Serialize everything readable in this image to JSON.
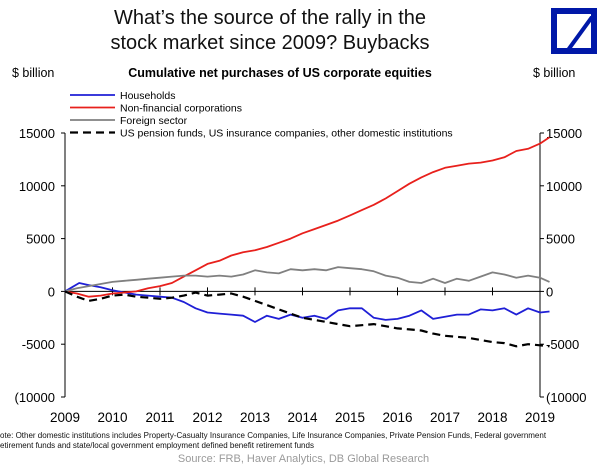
{
  "header": {
    "title_line1": "What’s the source of the rally in the",
    "title_line2": "stock market since 2009? Buybacks"
  },
  "logo": {
    "icon": "deutsche-bank-logo",
    "color": "#0018a8"
  },
  "chart_data": {
    "type": "line",
    "title": "Cumulative net purchases of US corporate equities",
    "ylabel_left": "$ billion",
    "ylabel_right": "$ billion",
    "ylim": [
      -10000,
      15000
    ],
    "y_ticks": [
      15000,
      10000,
      5000,
      0,
      -5000,
      -10000
    ],
    "y_tick_labels": [
      "15000",
      "10000",
      "5000",
      "0",
      "-5000",
      "(10000"
    ],
    "xlim": [
      2009,
      2019
    ],
    "x_ticks": [
      "2009",
      "2010",
      "2011",
      "2012",
      "2013",
      "2014",
      "2015",
      "2016",
      "2017",
      "2018",
      "2019"
    ],
    "grid": false,
    "legend_position": "top-left",
    "series": [
      {
        "name": "Households",
        "color": "#1f1fd6",
        "style": "solid",
        "points": [
          [
            2009.0,
            0
          ],
          [
            2009.15,
            400
          ],
          [
            2009.3,
            800
          ],
          [
            2009.5,
            600
          ],
          [
            2009.75,
            400
          ],
          [
            2010.0,
            100
          ],
          [
            2010.25,
            -100
          ],
          [
            2010.5,
            -300
          ],
          [
            2010.75,
            -400
          ],
          [
            2011.0,
            -500
          ],
          [
            2011.25,
            -600
          ],
          [
            2011.5,
            -1000
          ],
          [
            2011.75,
            -1600
          ],
          [
            2012.0,
            -2000
          ],
          [
            2012.25,
            -2100
          ],
          [
            2012.5,
            -2200
          ],
          [
            2012.75,
            -2300
          ],
          [
            2013.0,
            -2900
          ],
          [
            2013.25,
            -2300
          ],
          [
            2013.5,
            -2600
          ],
          [
            2013.75,
            -2200
          ],
          [
            2014.0,
            -2500
          ],
          [
            2014.25,
            -2300
          ],
          [
            2014.5,
            -2600
          ],
          [
            2014.75,
            -1800
          ],
          [
            2015.0,
            -1600
          ],
          [
            2015.25,
            -1600
          ],
          [
            2015.5,
            -2500
          ],
          [
            2015.75,
            -2700
          ],
          [
            2016.0,
            -2600
          ],
          [
            2016.25,
            -2300
          ],
          [
            2016.5,
            -1800
          ],
          [
            2016.75,
            -2600
          ],
          [
            2017.0,
            -2400
          ],
          [
            2017.25,
            -2200
          ],
          [
            2017.5,
            -2200
          ],
          [
            2017.75,
            -1700
          ],
          [
            2018.0,
            -1800
          ],
          [
            2018.25,
            -1600
          ],
          [
            2018.5,
            -2200
          ],
          [
            2018.75,
            -1600
          ],
          [
            2019.0,
            -2000
          ],
          [
            2019.2,
            -1900
          ]
        ]
      },
      {
        "name": "Non-financial corporations",
        "color": "#e8201c",
        "style": "solid",
        "points": [
          [
            2009.0,
            0
          ],
          [
            2009.25,
            -200
          ],
          [
            2009.5,
            -500
          ],
          [
            2009.75,
            -400
          ],
          [
            2010.0,
            -200
          ],
          [
            2010.25,
            -100
          ],
          [
            2010.5,
            0
          ],
          [
            2010.75,
            300
          ],
          [
            2011.0,
            500
          ],
          [
            2011.25,
            800
          ],
          [
            2011.5,
            1400
          ],
          [
            2011.75,
            2000
          ],
          [
            2012.0,
            2600
          ],
          [
            2012.25,
            2900
          ],
          [
            2012.5,
            3400
          ],
          [
            2012.75,
            3700
          ],
          [
            2013.0,
            3900
          ],
          [
            2013.25,
            4200
          ],
          [
            2013.5,
            4600
          ],
          [
            2013.75,
            5000
          ],
          [
            2014.0,
            5500
          ],
          [
            2014.25,
            5900
          ],
          [
            2014.5,
            6300
          ],
          [
            2014.75,
            6700
          ],
          [
            2015.0,
            7200
          ],
          [
            2015.25,
            7700
          ],
          [
            2015.5,
            8200
          ],
          [
            2015.75,
            8800
          ],
          [
            2016.0,
            9500
          ],
          [
            2016.25,
            10200
          ],
          [
            2016.5,
            10800
          ],
          [
            2016.75,
            11300
          ],
          [
            2017.0,
            11700
          ],
          [
            2017.25,
            11900
          ],
          [
            2017.5,
            12100
          ],
          [
            2017.75,
            12200
          ],
          [
            2018.0,
            12400
          ],
          [
            2018.25,
            12700
          ],
          [
            2018.5,
            13300
          ],
          [
            2018.75,
            13500
          ],
          [
            2019.0,
            14000
          ],
          [
            2019.2,
            14600
          ]
        ]
      },
      {
        "name": "Foreign sector",
        "color": "#808080",
        "style": "solid",
        "points": [
          [
            2009.0,
            0
          ],
          [
            2009.25,
            300
          ],
          [
            2009.5,
            500
          ],
          [
            2009.75,
            700
          ],
          [
            2010.0,
            900
          ],
          [
            2010.25,
            1000
          ],
          [
            2010.5,
            1100
          ],
          [
            2010.75,
            1200
          ],
          [
            2011.0,
            1300
          ],
          [
            2011.25,
            1400
          ],
          [
            2011.5,
            1500
          ],
          [
            2011.75,
            1500
          ],
          [
            2012.0,
            1400
          ],
          [
            2012.25,
            1500
          ],
          [
            2012.5,
            1400
          ],
          [
            2012.75,
            1600
          ],
          [
            2013.0,
            2000
          ],
          [
            2013.25,
            1800
          ],
          [
            2013.5,
            1700
          ],
          [
            2013.75,
            2100
          ],
          [
            2014.0,
            2000
          ],
          [
            2014.25,
            2100
          ],
          [
            2014.5,
            2000
          ],
          [
            2014.75,
            2300
          ],
          [
            2015.0,
            2200
          ],
          [
            2015.25,
            2100
          ],
          [
            2015.5,
            1900
          ],
          [
            2015.75,
            1500
          ],
          [
            2016.0,
            1300
          ],
          [
            2016.25,
            900
          ],
          [
            2016.5,
            800
          ],
          [
            2016.75,
            1200
          ],
          [
            2017.0,
            800
          ],
          [
            2017.25,
            1200
          ],
          [
            2017.5,
            1000
          ],
          [
            2017.75,
            1400
          ],
          [
            2018.0,
            1800
          ],
          [
            2018.25,
            1600
          ],
          [
            2018.5,
            1300
          ],
          [
            2018.75,
            1500
          ],
          [
            2019.0,
            1300
          ],
          [
            2019.2,
            900
          ]
        ]
      },
      {
        "name": "US pension funds, US insurance companies, other domestic institutions",
        "color": "#000000",
        "style": "dashed",
        "points": [
          [
            2009.0,
            0
          ],
          [
            2009.25,
            -500
          ],
          [
            2009.5,
            -900
          ],
          [
            2009.75,
            -700
          ],
          [
            2010.0,
            -400
          ],
          [
            2010.25,
            -300
          ],
          [
            2010.5,
            -500
          ],
          [
            2010.75,
            -600
          ],
          [
            2011.0,
            -700
          ],
          [
            2011.25,
            -600
          ],
          [
            2011.5,
            -400
          ],
          [
            2011.75,
            -100
          ],
          [
            2012.0,
            -400
          ],
          [
            2012.25,
            -300
          ],
          [
            2012.5,
            -200
          ],
          [
            2012.75,
            -500
          ],
          [
            2013.0,
            -900
          ],
          [
            2013.25,
            -1300
          ],
          [
            2013.5,
            -1700
          ],
          [
            2013.75,
            -2100
          ],
          [
            2014.0,
            -2500
          ],
          [
            2014.25,
            -2700
          ],
          [
            2014.5,
            -2900
          ],
          [
            2014.75,
            -3100
          ],
          [
            2015.0,
            -3300
          ],
          [
            2015.25,
            -3200
          ],
          [
            2015.5,
            -3100
          ],
          [
            2015.75,
            -3300
          ],
          [
            2016.0,
            -3500
          ],
          [
            2016.25,
            -3600
          ],
          [
            2016.5,
            -3700
          ],
          [
            2016.75,
            -4000
          ],
          [
            2017.0,
            -4200
          ],
          [
            2017.25,
            -4300
          ],
          [
            2017.5,
            -4400
          ],
          [
            2017.75,
            -4600
          ],
          [
            2018.0,
            -4800
          ],
          [
            2018.25,
            -4900
          ],
          [
            2018.5,
            -5200
          ],
          [
            2018.75,
            -5000
          ],
          [
            2019.0,
            -5100
          ],
          [
            2019.2,
            -5200
          ]
        ]
      }
    ]
  },
  "footer": {
    "note_line1": "ote: Other domestic institutions includes Property-Casualty Insurance Companies, Life Insurance Companies, Private Pension Funds, Federal government",
    "note_line2": "etirement funds and state/local government employment defined benefit retirement funds",
    "source": "Source: FRB, Haver Analytics, DB Global Research"
  }
}
